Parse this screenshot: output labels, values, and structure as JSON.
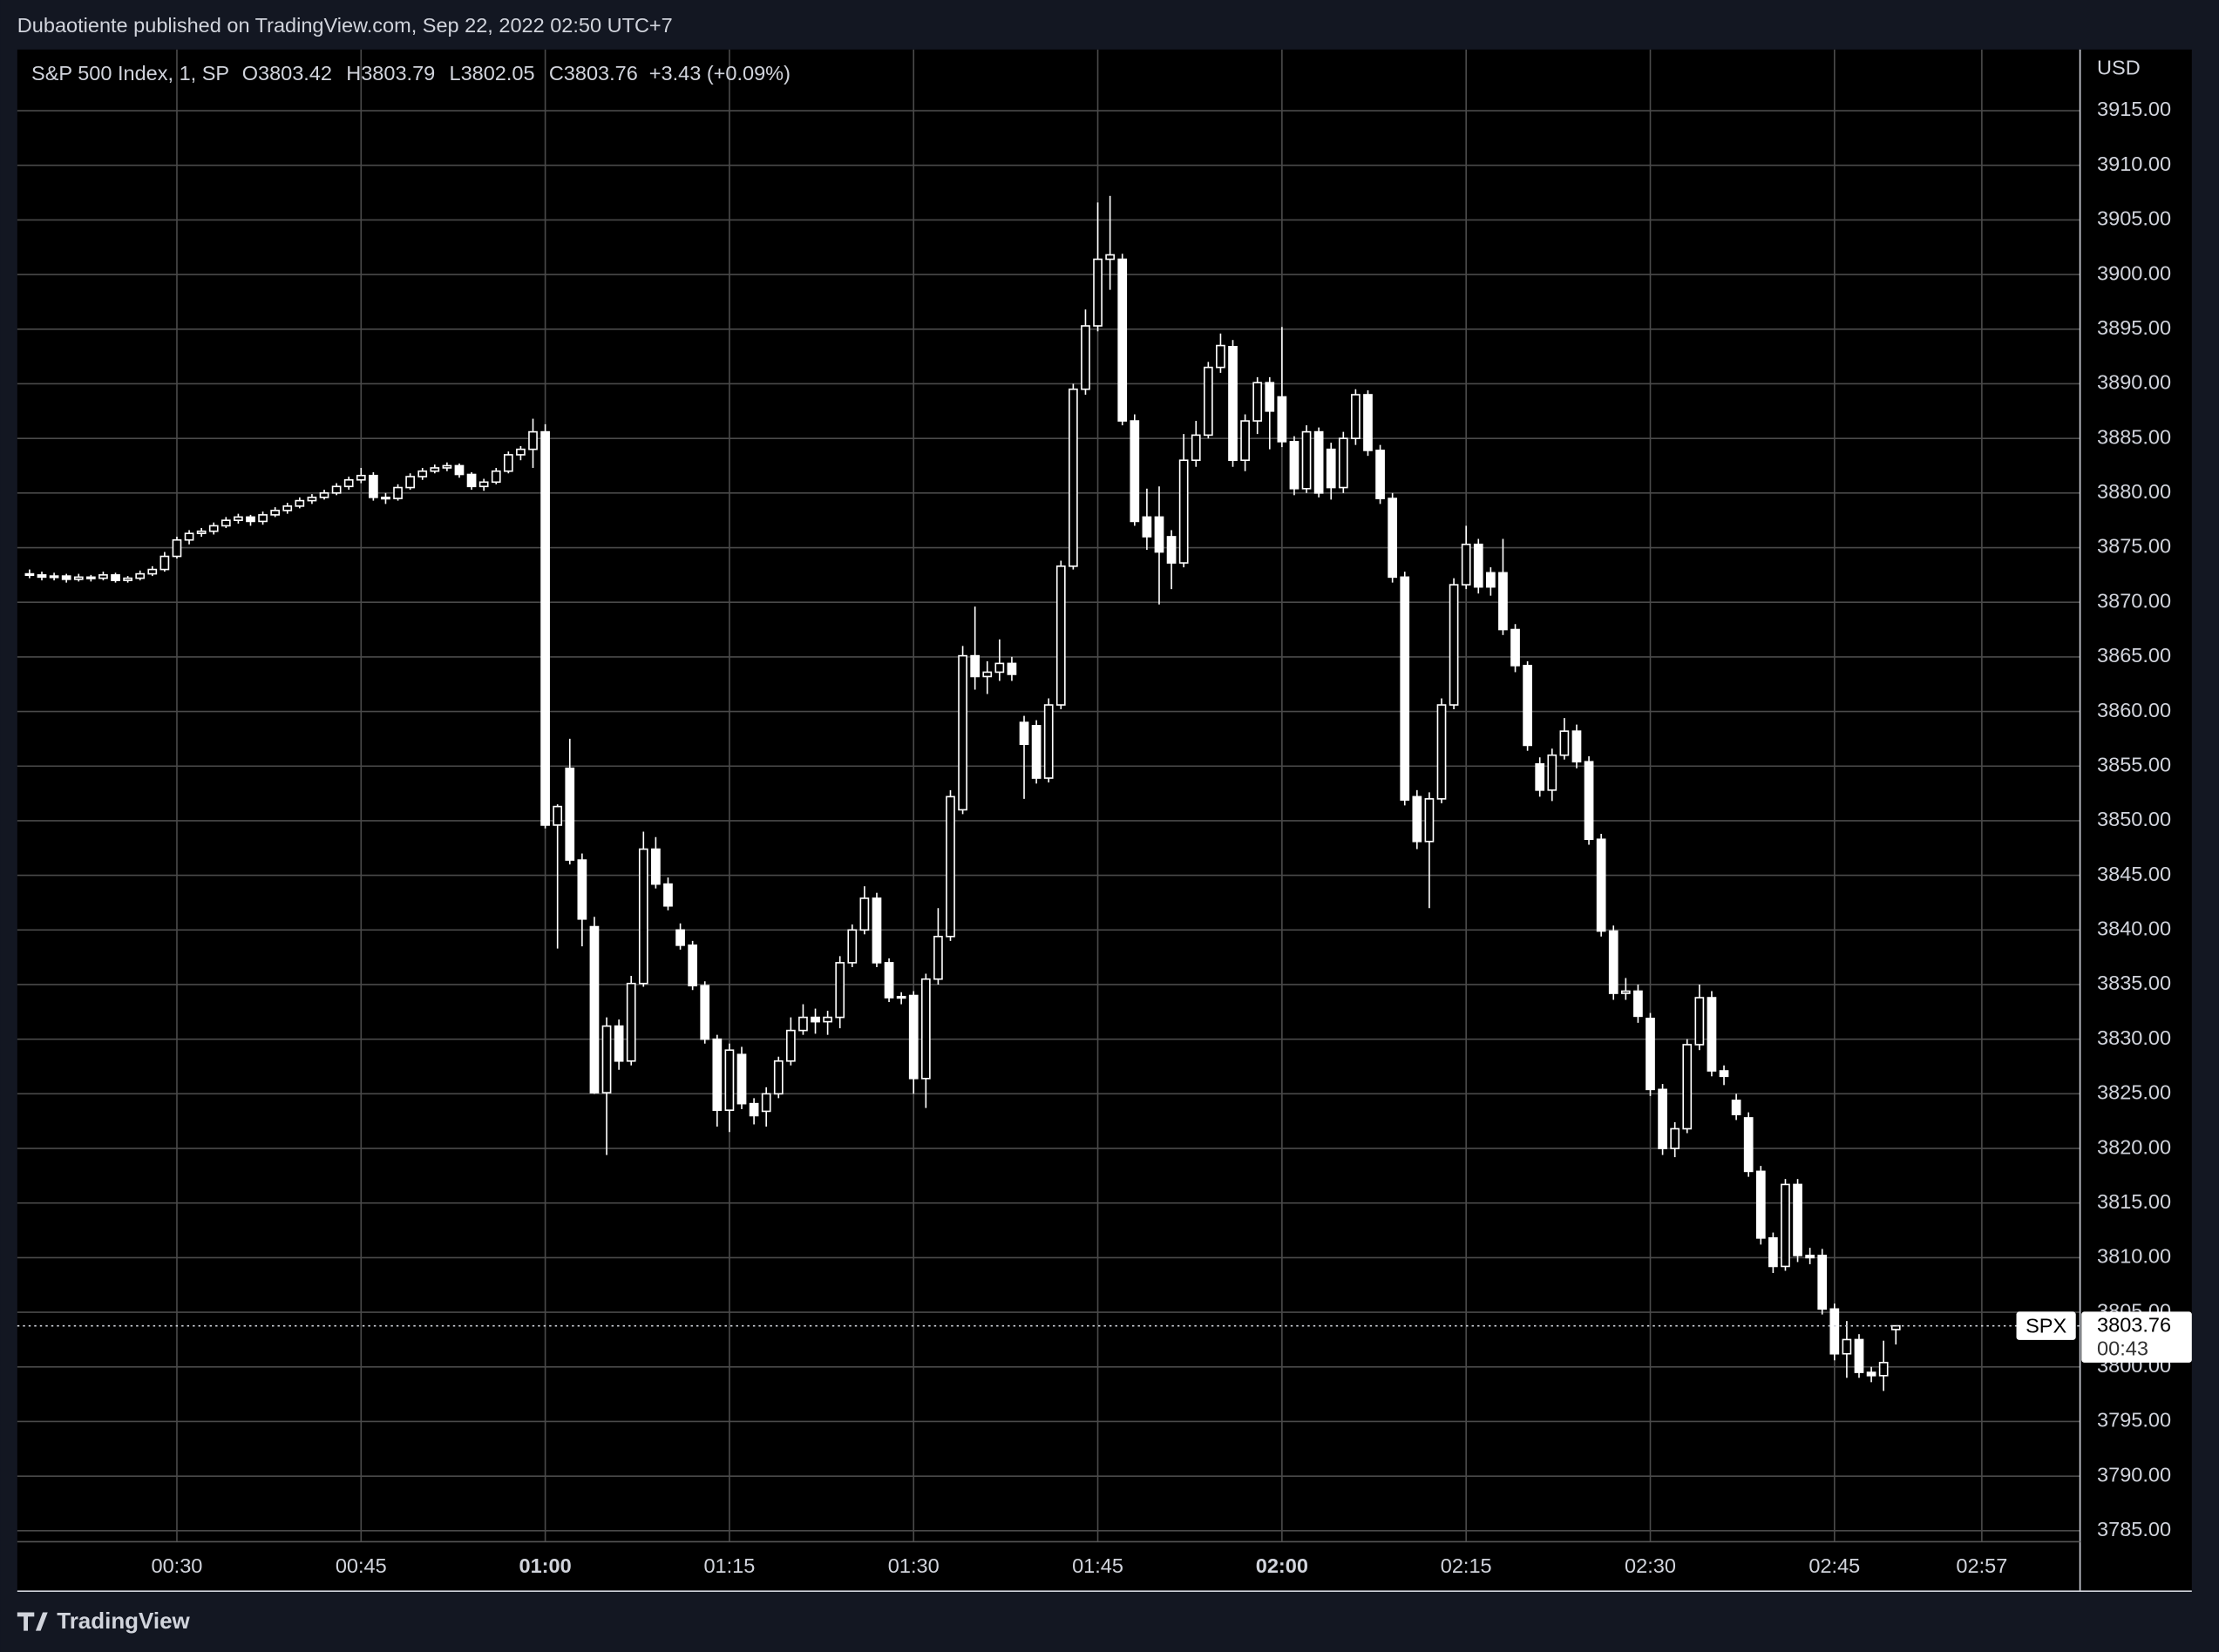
{
  "header": {
    "title": "Dubaotiente published on TradingView.com, Sep 22, 2022 02:50 UTC+7"
  },
  "footer": {
    "brand": "TradingView"
  },
  "chart_data": {
    "type": "candlestick",
    "legend": {
      "symbol": "S&P 500 Index, 1, SP",
      "labels": [
        "O",
        "H",
        "L",
        "C"
      ],
      "change": "+3.43 (+0.09%)"
    },
    "y_unit": "USD",
    "price_tag": {
      "symbol": "SPX",
      "countdown": "00:43"
    },
    "x": [
      "00:18",
      "00:19",
      "00:20",
      "00:21",
      "00:22",
      "00:23",
      "00:24",
      "00:25",
      "00:26",
      "00:27",
      "00:28",
      "00:29",
      "00:30",
      "00:31",
      "00:32",
      "00:33",
      "00:34",
      "00:35",
      "00:36",
      "00:37",
      "00:38",
      "00:39",
      "00:40",
      "00:41",
      "00:42",
      "00:43",
      "00:44",
      "00:45",
      "00:46",
      "00:47",
      "00:48",
      "00:49",
      "00:50",
      "00:51",
      "00:52",
      "00:53",
      "00:54",
      "00:55",
      "00:56",
      "00:57",
      "00:58",
      "00:59",
      "01:00",
      "01:01",
      "01:02",
      "01:03",
      "01:04",
      "01:05",
      "01:06",
      "01:07",
      "01:08",
      "01:09",
      "01:10",
      "01:11",
      "01:12",
      "01:13",
      "01:14",
      "01:15",
      "01:16",
      "01:17",
      "01:18",
      "01:19",
      "01:20",
      "01:21",
      "01:22",
      "01:23",
      "01:24",
      "01:25",
      "01:26",
      "01:27",
      "01:28",
      "01:29",
      "01:30",
      "01:31",
      "01:32",
      "01:33",
      "01:34",
      "01:35",
      "01:36",
      "01:37",
      "01:38",
      "01:39",
      "01:40",
      "01:41",
      "01:42",
      "01:43",
      "01:44",
      "01:45",
      "01:46",
      "01:47",
      "01:48",
      "01:49",
      "01:50",
      "01:51",
      "01:52",
      "01:53",
      "01:54",
      "01:55",
      "01:56",
      "01:57",
      "01:58",
      "01:59",
      "02:00",
      "02:01",
      "02:02",
      "02:03",
      "02:04",
      "02:05",
      "02:06",
      "02:07",
      "02:08",
      "02:09",
      "02:10",
      "02:11",
      "02:12",
      "02:13",
      "02:14",
      "02:15",
      "02:16",
      "02:17",
      "02:18",
      "02:19",
      "02:20",
      "02:21",
      "02:22",
      "02:23",
      "02:24",
      "02:25",
      "02:26",
      "02:27",
      "02:28",
      "02:29",
      "02:30",
      "02:31",
      "02:32",
      "02:33",
      "02:34",
      "02:35",
      "02:36",
      "02:37",
      "02:38",
      "02:39",
      "02:40",
      "02:41",
      "02:42",
      "02:43",
      "02:44",
      "02:45",
      "02:46",
      "02:47",
      "02:48",
      "02:49",
      "02:50"
    ],
    "open": [
      3872.6,
      3872.5,
      3872.3,
      3872.4,
      3872.1,
      3872.3,
      3872.2,
      3872.5,
      3872.0,
      3872.2,
      3872.6,
      3873.0,
      3874.2,
      3875.7,
      3876.3,
      3876.5,
      3877.0,
      3877.5,
      3877.8,
      3877.4,
      3878.0,
      3878.4,
      3878.8,
      3879.3,
      3879.6,
      3880.0,
      3880.6,
      3881.2,
      3881.6,
      3879.6,
      3879.5,
      3880.5,
      3881.5,
      3882.0,
      3882.3,
      3882.5,
      3881.7,
      3880.6,
      3881.0,
      3882.0,
      3883.5,
      3884.0,
      3885.6,
      3849.6,
      3854.8,
      3846.4,
      3840.3,
      3825.1,
      3831.2,
      3828.0,
      3835.1,
      3847.4,
      3844.2,
      3840.0,
      3838.6,
      3834.9,
      3830.0,
      3823.5,
      3828.6,
      3824.1,
      3823.4,
      3825.0,
      3828.0,
      3830.8,
      3832.0,
      3831.6,
      3832.0,
      3837.0,
      3840.0,
      3842.9,
      3837.0,
      3833.8,
      3834.0,
      3826.4,
      3835.5,
      3839.4,
      3851.0,
      3865.1,
      3863.2,
      3863.6,
      3864.4,
      3859.0,
      3858.7,
      3853.9,
      3860.6,
      3873.3,
      3889.5,
      3895.3,
      3901.4,
      3901.4,
      3886.6,
      3877.8,
      3877.8,
      3876.0,
      3873.6,
      3883.0,
      3885.3,
      3891.5,
      3893.4,
      3883.0,
      3886.6,
      3890.1,
      3888.8,
      3884.7,
      3880.4,
      3885.6,
      3884.0,
      3880.5,
      3885.0,
      3889.0,
      3883.9,
      3879.5,
      3872.3,
      3852.2,
      3848.1,
      3852.0,
      3860.6,
      3871.6,
      3875.3,
      3872.7,
      3872.7,
      3867.5,
      3864.2,
      3855.2,
      3852.8,
      3856.0,
      3858.2,
      3855.4,
      3848.3,
      3839.9,
      3834.2,
      3834.4,
      3831.9,
      3825.4,
      3820.0,
      3821.8,
      3829.5,
      3833.8,
      3827.1,
      3824.4,
      3822.8,
      3817.9,
      3811.8,
      3809.2,
      3816.7,
      3810.2,
      3810.2,
      3805.3,
      3801.2,
      3802.5,
      3799.5,
      3799.2,
      3803.42
    ],
    "high": [
      3873.0,
      3872.8,
      3872.7,
      3872.6,
      3872.6,
      3872.5,
      3872.8,
      3872.7,
      3872.4,
      3872.9,
      3873.3,
      3874.6,
      3876.0,
      3876.6,
      3876.8,
      3877.3,
      3877.8,
      3878.1,
      3878.0,
      3878.3,
      3878.7,
      3879.1,
      3879.6,
      3879.9,
      3880.3,
      3880.9,
      3881.5,
      3882.3,
      3881.9,
      3880.0,
      3880.8,
      3881.8,
      3882.3,
      3882.6,
      3882.8,
      3882.7,
      3881.9,
      3881.3,
      3882.3,
      3883.8,
      3884.3,
      3886.8,
      3886.3,
      3851.5,
      3857.5,
      3847.0,
      3841.2,
      3832.0,
      3831.8,
      3835.8,
      3849.0,
      3848.5,
      3844.8,
      3840.6,
      3839.0,
      3835.3,
      3830.4,
      3829.6,
      3829.3,
      3824.6,
      3825.6,
      3828.4,
      3832.0,
      3833.2,
      3832.8,
      3832.6,
      3837.6,
      3840.5,
      3844.0,
      3843.4,
      3837.4,
      3834.3,
      3834.4,
      3836.0,
      3842.0,
      3852.8,
      3866.0,
      3869.6,
      3864.6,
      3866.6,
      3865.0,
      3859.6,
      3859.2,
      3861.2,
      3873.8,
      3890.0,
      3896.8,
      3906.6,
      3907.2,
      3901.9,
      3887.2,
      3880.4,
      3880.6,
      3876.6,
      3885.4,
      3886.6,
      3892.0,
      3894.6,
      3894.0,
      3887.2,
      3890.6,
      3890.6,
      3895.2,
      3885.2,
      3886.2,
      3886.0,
      3884.6,
      3885.6,
      3889.5,
      3889.4,
      3884.4,
      3880.0,
      3872.8,
      3852.8,
      3852.6,
      3861.2,
      3872.2,
      3877.0,
      3875.8,
      3873.2,
      3875.8,
      3868.0,
      3864.6,
      3855.8,
      3856.6,
      3859.4,
      3858.8,
      3855.9,
      3848.8,
      3840.4,
      3835.6,
      3835.0,
      3832.4,
      3825.9,
      3822.4,
      3830.0,
      3835.0,
      3834.4,
      3827.6,
      3825.0,
      3823.3,
      3818.4,
      3812.3,
      3817.2,
      3817.2,
      3810.9,
      3810.8,
      3805.8,
      3804.2,
      3803.0,
      3800.0,
      3802.4,
      3803.79
    ],
    "low": [
      3872.2,
      3872.0,
      3872.0,
      3871.8,
      3871.9,
      3871.9,
      3872.0,
      3871.8,
      3871.8,
      3872.0,
      3872.4,
      3872.8,
      3874.0,
      3875.3,
      3876.0,
      3876.2,
      3876.8,
      3877.2,
      3877.0,
      3877.1,
      3877.8,
      3878.1,
      3878.6,
      3879.0,
      3879.4,
      3879.8,
      3880.3,
      3880.9,
      3879.3,
      3879.0,
      3879.3,
      3880.3,
      3881.2,
      3881.8,
      3882.0,
      3881.4,
      3880.3,
      3880.2,
      3880.8,
      3881.8,
      3883.0,
      3882.3,
      3849.3,
      3838.3,
      3846.0,
      3838.5,
      3825.0,
      3819.4,
      3827.2,
      3827.6,
      3834.8,
      3843.8,
      3841.8,
      3838.2,
      3834.5,
      3829.6,
      3822.0,
      3821.5,
      3823.6,
      3822.2,
      3822.0,
      3824.6,
      3827.6,
      3830.4,
      3830.5,
      3830.4,
      3831.0,
      3836.6,
      3839.6,
      3836.6,
      3833.4,
      3833.2,
      3825.0,
      3823.7,
      3835.0,
      3839.0,
      3850.6,
      3862.0,
      3861.6,
      3862.8,
      3862.8,
      3852.0,
      3853.4,
      3853.5,
      3860.2,
      3873.0,
      3889.0,
      3894.8,
      3898.6,
      3886.2,
      3877.0,
      3874.8,
      3869.8,
      3871.2,
      3873.2,
      3882.4,
      3885.0,
      3891.0,
      3882.4,
      3882.0,
      3885.4,
      3884.0,
      3884.2,
      3879.8,
      3880.0,
      3879.6,
      3879.4,
      3880.0,
      3884.4,
      3883.4,
      3879.0,
      3871.8,
      3851.4,
      3847.4,
      3842.0,
      3851.6,
      3860.2,
      3871.2,
      3870.8,
      3870.6,
      3867.0,
      3863.6,
      3856.4,
      3852.2,
      3851.8,
      3855.6,
      3854.8,
      3847.8,
      3839.4,
      3833.6,
      3833.6,
      3831.5,
      3824.8,
      3819.4,
      3819.2,
      3821.4,
      3829.0,
      3826.6,
      3825.8,
      3822.6,
      3817.4,
      3811.2,
      3808.6,
      3808.8,
      3809.6,
      3809.4,
      3804.8,
      3800.6,
      3799.0,
      3799.0,
      3798.6,
      3797.8,
      3802.05
    ],
    "close": [
      3872.5,
      3872.3,
      3872.4,
      3872.1,
      3872.3,
      3872.2,
      3872.5,
      3872.0,
      3872.2,
      3872.6,
      3873.0,
      3874.2,
      3875.7,
      3876.3,
      3876.5,
      3877.0,
      3877.5,
      3877.8,
      3877.4,
      3878.0,
      3878.4,
      3878.8,
      3879.3,
      3879.6,
      3880.0,
      3880.6,
      3881.2,
      3881.6,
      3879.6,
      3879.5,
      3880.5,
      3881.5,
      3882.0,
      3882.3,
      3882.5,
      3881.7,
      3880.6,
      3881.0,
      3882.0,
      3883.5,
      3884.0,
      3885.6,
      3849.6,
      3851.3,
      3846.4,
      3841.0,
      3825.1,
      3831.2,
      3828.0,
      3835.1,
      3847.4,
      3844.2,
      3842.2,
      3838.6,
      3834.9,
      3830.0,
      3823.5,
      3829.0,
      3824.1,
      3823.0,
      3825.0,
      3828.0,
      3830.8,
      3832.0,
      3831.6,
      3832.0,
      3837.0,
      3840.0,
      3842.9,
      3837.0,
      3833.8,
      3833.9,
      3826.4,
      3835.5,
      3839.4,
      3852.2,
      3865.1,
      3863.2,
      3863.6,
      3864.4,
      3863.4,
      3857.0,
      3853.9,
      3860.6,
      3873.3,
      3889.5,
      3895.3,
      3901.4,
      3901.8,
      3886.6,
      3877.4,
      3876.0,
      3874.6,
      3873.6,
      3883.0,
      3885.3,
      3891.5,
      3893.5,
      3883.0,
      3886.6,
      3890.1,
      3887.5,
      3884.7,
      3880.4,
      3885.6,
      3880.0,
      3880.5,
      3885.0,
      3889.0,
      3883.9,
      3879.5,
      3872.3,
      3851.9,
      3848.1,
      3852.0,
      3860.6,
      3871.6,
      3875.3,
      3871.4,
      3871.4,
      3867.5,
      3864.2,
      3856.9,
      3852.8,
      3856.0,
      3858.2,
      3855.4,
      3848.3,
      3839.9,
      3834.2,
      3834.4,
      3832.1,
      3825.4,
      3820.0,
      3821.8,
      3829.5,
      3833.8,
      3827.1,
      3826.6,
      3823.1,
      3817.9,
      3811.8,
      3809.2,
      3816.7,
      3810.2,
      3810.0,
      3805.3,
      3801.2,
      3802.5,
      3799.5,
      3799.2,
      3800.4,
      3803.76
    ],
    "color": "#ffffff",
    "xlim": [
      "00:17",
      "03:05"
    ],
    "xticks": [
      "00:30",
      "00:45",
      "01:00",
      "01:15",
      "01:30",
      "01:45",
      "02:00",
      "02:15",
      "02:30",
      "02:45",
      "02:57"
    ],
    "ylim": [
      3784,
      3920.6
    ],
    "yticks": [
      {
        "value": 3785,
        "label": "3785.00"
      },
      {
        "value": 3790,
        "label": "3790.00"
      },
      {
        "value": 3795,
        "label": "3795.00"
      },
      {
        "value": 3800,
        "label": "3800.00"
      },
      {
        "value": 3805,
        "label": "3805.00"
      },
      {
        "value": 3810,
        "label": "3810.00"
      },
      {
        "value": 3815,
        "label": "3815.00"
      },
      {
        "value": 3820,
        "label": "3820.00"
      },
      {
        "value": 3825,
        "label": "3825.00"
      },
      {
        "value": 3830,
        "label": "3830.00"
      },
      {
        "value": 3835,
        "label": "3835.00"
      },
      {
        "value": 3840,
        "label": "3840.00"
      },
      {
        "value": 3845,
        "label": "3845.00"
      },
      {
        "value": 3850,
        "label": "3850.00"
      },
      {
        "value": 3855,
        "label": "3855.00"
      },
      {
        "value": 3860,
        "label": "3860.00"
      },
      {
        "value": 3865,
        "label": "3865.00"
      },
      {
        "value": 3870,
        "label": "3870.00"
      },
      {
        "value": 3875,
        "label": "3875.00"
      },
      {
        "value": 3880,
        "label": "3880.00"
      },
      {
        "value": 3885,
        "label": "3885.00"
      },
      {
        "value": 3890,
        "label": "3890.00"
      },
      {
        "value": 3895,
        "label": "3895.00"
      },
      {
        "value": 3900,
        "label": "3900.00"
      },
      {
        "value": 3905,
        "label": "3905.00"
      },
      {
        "value": 3910,
        "label": "3910.00"
      },
      {
        "value": 3915,
        "label": "3915.00"
      }
    ],
    "grid": true
  }
}
